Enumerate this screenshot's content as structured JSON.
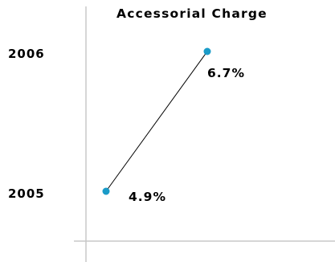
{
  "chart_data": {
    "type": "line",
    "title": "Accessorial Charge",
    "categories": [
      "2005",
      "2006"
    ],
    "series": [
      {
        "values": [
          4.9,
          6.7
        ],
        "labels": [
          "4.9%",
          "6.7%"
        ],
        "color": "#1a9bc8"
      }
    ],
    "xlim": [
      4.0,
      9.0
    ],
    "orientation": "categories-on-vertical-axis",
    "grid": false,
    "legend": "none"
  }
}
